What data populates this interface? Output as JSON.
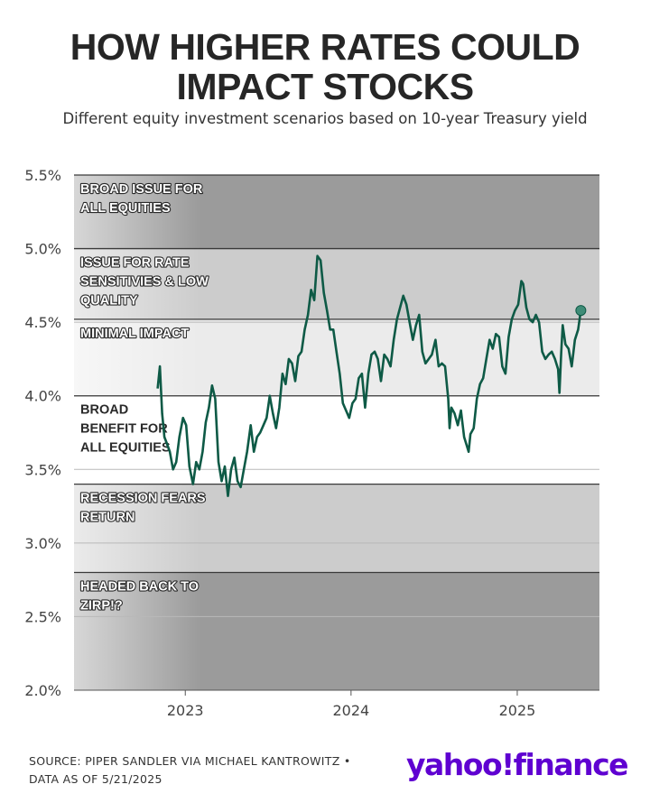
{
  "title_lines": [
    "HOW HIGHER RATES COULD",
    "IMPACT STOCKS"
  ],
  "subtitle": "Different equity investment scenarios based on 10-year Treasury yield",
  "footer": {
    "line1": "SOURCE: PIPER SANDLER VIA MICHAEL KANTROWITZ •",
    "line2": "DATA AS OF 5/21/2025"
  },
  "logo": {
    "text": "yahoo!finance",
    "color": "#5f01d1"
  },
  "colors": {
    "line": "#0e5a46",
    "band_dark": "#9b9b9b",
    "band_mid": "#cccccc",
    "band_light": "#ebebeb",
    "band_white": "#ffffff"
  },
  "chart_data": {
    "type": "line",
    "ylim": [
      2.0,
      5.5
    ],
    "yticks": [
      "5.5%",
      "5.0%",
      "4.5%",
      "4.0%",
      "3.5%",
      "3.0%",
      "2.5%",
      "2.0%"
    ],
    "xticks": [
      "2023",
      "2024",
      "2025"
    ],
    "xlim": [
      "2022-05-01",
      "2025-07-01"
    ],
    "zones": [
      {
        "label_lines": [
          "BROAD ISSUE FOR",
          "ALL EQUITIES"
        ],
        "low": 5.0,
        "high": 5.5,
        "shade": "dark"
      },
      {
        "label_lines": [
          "ISSUE FOR RATE",
          "SENSITIVIES & LOW",
          "QUALITY"
        ],
        "low": 4.52,
        "high": 5.0,
        "shade": "mid"
      },
      {
        "label_lines": [
          "MINIMAL IMPACT"
        ],
        "low": 4.0,
        "high": 4.52,
        "shade": "light"
      },
      {
        "label_lines": [
          "BROAD",
          "BENEFIT FOR",
          "ALL EQUITIES"
        ],
        "low": 3.4,
        "high": 4.0,
        "shade": "white"
      },
      {
        "label_lines": [
          "RECESSION FEARS",
          "RETURN"
        ],
        "low": 2.8,
        "high": 3.4,
        "shade": "mid"
      },
      {
        "label_lines": [
          "HEADED BACK TO",
          "ZIRP!?"
        ],
        "low": 2.0,
        "high": 2.8,
        "shade": "dark"
      }
    ],
    "series": [
      {
        "x": [
          "2022-11-01",
          "2022-11-06",
          "2022-11-11",
          "2022-11-16",
          "2022-11-21",
          "2022-11-28",
          "2022-12-05",
          "2022-12-12",
          "2022-12-19",
          "2022-12-27",
          "2023-01-03",
          "2023-01-10",
          "2023-01-18",
          "2023-01-25",
          "2023-02-01",
          "2023-02-08",
          "2023-02-15",
          "2023-02-22",
          "2023-03-01",
          "2023-03-08",
          "2023-03-15",
          "2023-03-22",
          "2023-03-29",
          "2023-04-05",
          "2023-04-12",
          "2023-04-19",
          "2023-04-26",
          "2023-05-03",
          "2023-05-10",
          "2023-05-17",
          "2023-05-25",
          "2023-06-01",
          "2023-06-08",
          "2023-06-15",
          "2023-06-22",
          "2023-06-29",
          "2023-07-06",
          "2023-07-13",
          "2023-07-20",
          "2023-07-27",
          "2023-08-03",
          "2023-08-10",
          "2023-08-17",
          "2023-08-24",
          "2023-08-31",
          "2023-09-07",
          "2023-09-14",
          "2023-09-21",
          "2023-09-28",
          "2023-10-05",
          "2023-10-12",
          "2023-10-19",
          "2023-10-26",
          "2023-11-02",
          "2023-11-09",
          "2023-11-16",
          "2023-11-23",
          "2023-11-30",
          "2023-12-07",
          "2023-12-14",
          "2023-12-21",
          "2023-12-28",
          "2024-01-04",
          "2024-01-11",
          "2024-01-18",
          "2024-01-25",
          "2024-02-01",
          "2024-02-08",
          "2024-02-15",
          "2024-02-22",
          "2024-02-29",
          "2024-03-07",
          "2024-03-14",
          "2024-03-21",
          "2024-03-28",
          "2024-04-04",
          "2024-04-11",
          "2024-04-18",
          "2024-04-25",
          "2024-05-02",
          "2024-05-09",
          "2024-05-16",
          "2024-05-23",
          "2024-05-30",
          "2024-06-06",
          "2024-06-13",
          "2024-06-20",
          "2024-06-27",
          "2024-07-05",
          "2024-07-12",
          "2024-07-19",
          "2024-07-26",
          "2024-08-02",
          "2024-08-05",
          "2024-08-09",
          "2024-08-16",
          "2024-08-23",
          "2024-08-30",
          "2024-09-06",
          "2024-09-13",
          "2024-09-16",
          "2024-09-20",
          "2024-09-27",
          "2024-10-04",
          "2024-10-11",
          "2024-10-18",
          "2024-10-25",
          "2024-11-01",
          "2024-11-08",
          "2024-11-15",
          "2024-11-22",
          "2024-11-29",
          "2024-12-06",
          "2024-12-13",
          "2024-12-20",
          "2024-12-27",
          "2025-01-03",
          "2025-01-10",
          "2025-01-14",
          "2025-01-21",
          "2025-01-28",
          "2025-02-04",
          "2025-02-11",
          "2025-02-18",
          "2025-02-25",
          "2025-03-04",
          "2025-03-11",
          "2025-03-18",
          "2025-03-25",
          "2025-04-01",
          "2025-04-04",
          "2025-04-08",
          "2025-04-11",
          "2025-04-17",
          "2025-04-24",
          "2025-05-01",
          "2025-05-08",
          "2025-05-15",
          "2025-05-21"
        ],
        "y": [
          4.05,
          4.2,
          3.88,
          3.72,
          3.68,
          3.62,
          3.5,
          3.55,
          3.72,
          3.85,
          3.8,
          3.52,
          3.4,
          3.55,
          3.5,
          3.62,
          3.82,
          3.92,
          4.07,
          3.98,
          3.55,
          3.42,
          3.52,
          3.32,
          3.5,
          3.58,
          3.42,
          3.38,
          3.5,
          3.62,
          3.8,
          3.62,
          3.72,
          3.75,
          3.8,
          3.85,
          4.0,
          3.88,
          3.78,
          3.92,
          4.15,
          4.08,
          4.25,
          4.22,
          4.1,
          4.27,
          4.3,
          4.45,
          4.55,
          4.72,
          4.65,
          4.95,
          4.92,
          4.7,
          4.58,
          4.45,
          4.45,
          4.3,
          4.15,
          3.95,
          3.9,
          3.85,
          3.95,
          3.98,
          4.12,
          4.15,
          3.92,
          4.15,
          4.28,
          4.3,
          4.25,
          4.1,
          4.28,
          4.25,
          4.2,
          4.38,
          4.52,
          4.6,
          4.68,
          4.62,
          4.5,
          4.38,
          4.48,
          4.55,
          4.3,
          4.22,
          4.25,
          4.28,
          4.38,
          4.2,
          4.22,
          4.2,
          3.98,
          3.78,
          3.92,
          3.88,
          3.8,
          3.9,
          3.72,
          3.65,
          3.62,
          3.74,
          3.78,
          3.98,
          4.08,
          4.12,
          4.25,
          4.38,
          4.32,
          4.42,
          4.4,
          4.2,
          4.15,
          4.4,
          4.52,
          4.58,
          4.62,
          4.78,
          4.76,
          4.6,
          4.52,
          4.5,
          4.55,
          4.5,
          4.3,
          4.25,
          4.28,
          4.3,
          4.25,
          4.18,
          4.02,
          4.3,
          4.48,
          4.35,
          4.32,
          4.2,
          4.38,
          4.45,
          4.58
        ]
      }
    ]
  }
}
